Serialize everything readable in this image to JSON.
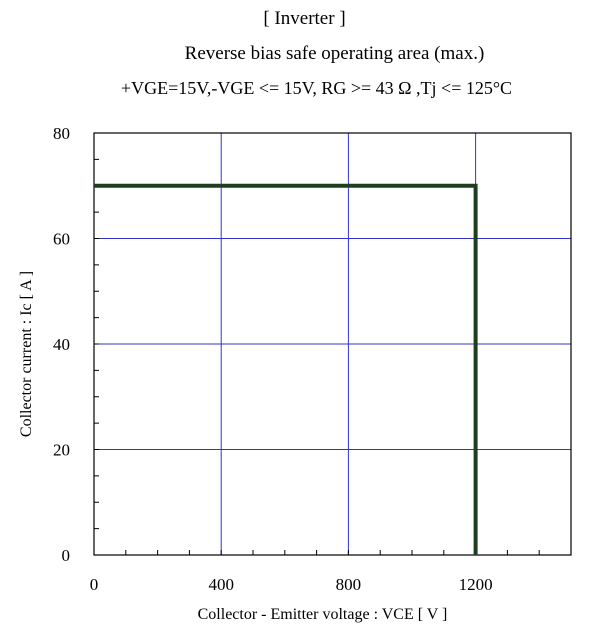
{
  "titles": {
    "line1": "[ Inverter ]",
    "line2": "Reverse bias safe operating area (max.)",
    "line3": "+VGE=15V,-VGE <= 15V, RG >= 43 Ω ,Tj <= 125°C"
  },
  "chart_data": {
    "type": "line",
    "xlabel": "Collector - Emitter voltage : VCE [ V ]",
    "ylabel": "Collector current : Ic [ A ]",
    "xlim": [
      0,
      1500
    ],
    "ylim": [
      0,
      80
    ],
    "x_ticks": [
      0,
      400,
      800,
      1200
    ],
    "x_minor_step": 100,
    "y_ticks": [
      0,
      20,
      40,
      60,
      80
    ],
    "y_minor_step": 5,
    "grid": true,
    "grid_color": "#3333cc",
    "series": [
      {
        "color": "#1f3d1f",
        "x": [
          0,
          1200,
          1200
        ],
        "y": [
          70,
          70,
          0
        ]
      }
    ]
  }
}
